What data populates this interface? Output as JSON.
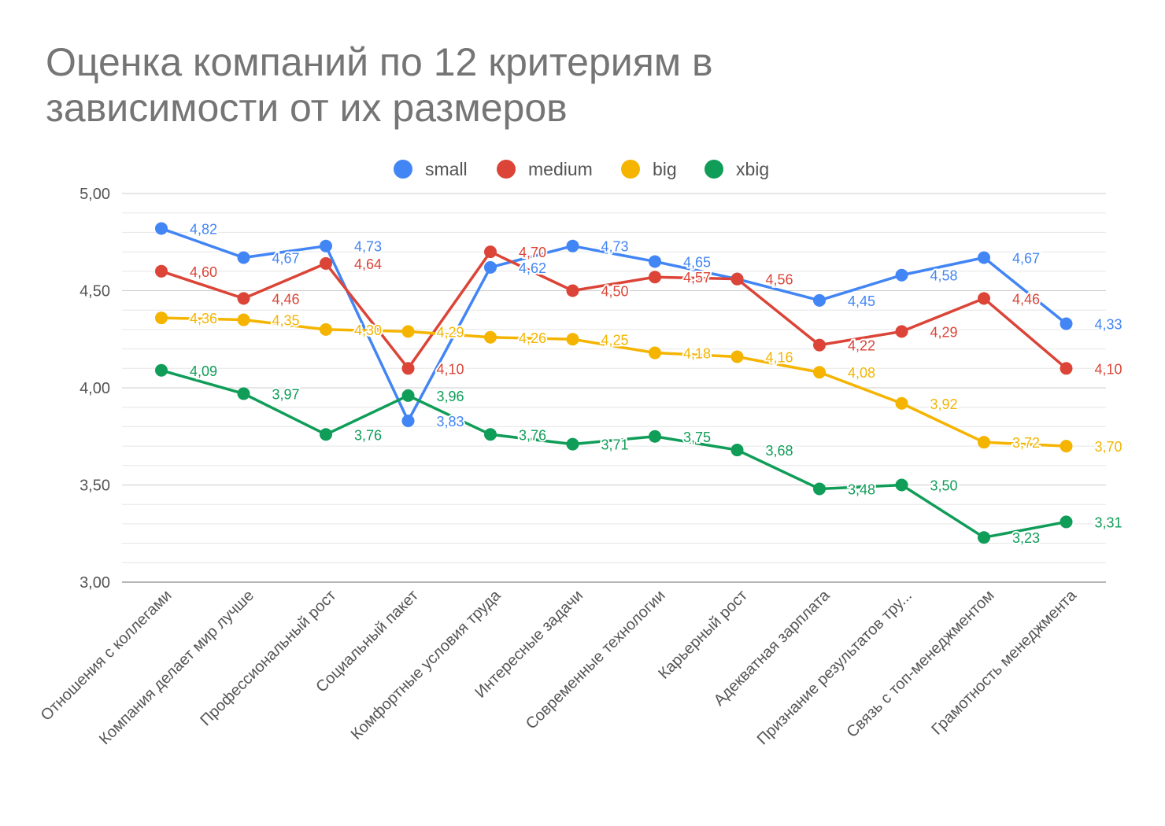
{
  "chart_data": {
    "type": "line",
    "title_lines": [
      "Оценка компаний по 12 критериям в",
      "зависимости от их размеров"
    ],
    "xlabel": "",
    "ylabel": "",
    "ylim": [
      3.0,
      5.0
    ],
    "yticks": [
      "3,00",
      "3,50",
      "4,00",
      "4,50",
      "5,00"
    ],
    "ytick_values": [
      3.0,
      3.5,
      4.0,
      4.5,
      5.0
    ],
    "grid": true,
    "legend_position": "top-center",
    "categories": [
      "Отношения с коллегами",
      "Компания делает мир лучше",
      "Профессиональный рост",
      "Социальный пакет",
      "Комфортные условия труда",
      "Интересные задачи",
      "Современные технологии",
      "Карьерный рост",
      "Адекватная зарплата",
      "Признание результатов тру...",
      "Связь с топ-менеджментом",
      "Грамотность менеджмента"
    ],
    "series": [
      {
        "name": "small",
        "color": "#4285f4",
        "values": [
          4.82,
          4.67,
          4.73,
          3.83,
          4.62,
          4.73,
          4.65,
          4.56,
          4.45,
          4.58,
          4.67,
          4.33
        ],
        "labels": [
          "4,82",
          "4,67",
          "4,73",
          "3,83",
          "4,62",
          "4,73",
          "4,65",
          "",
          "4,45",
          "4,58",
          "4,67",
          "4,33"
        ]
      },
      {
        "name": "medium",
        "color": "#db4437",
        "values": [
          4.6,
          4.46,
          4.64,
          4.1,
          4.7,
          4.5,
          4.57,
          4.56,
          4.22,
          4.29,
          4.46,
          4.1
        ],
        "labels": [
          "4,60",
          "4,46",
          "4,64",
          "4,10",
          "4,70",
          "4,50",
          "4,57",
          "4,56",
          "4,22",
          "4,29",
          "4,46",
          "4,10"
        ]
      },
      {
        "name": "big",
        "color": "#f4b400",
        "values": [
          4.36,
          4.35,
          4.3,
          4.29,
          4.26,
          4.25,
          4.18,
          4.16,
          4.08,
          3.92,
          3.72,
          3.7
        ],
        "labels": [
          "4,36",
          "4,35",
          "4,30",
          "4,29",
          "4,26",
          "4,25",
          "4,18",
          "4,16",
          "4,08",
          "3,92",
          "3,72",
          "3,70"
        ]
      },
      {
        "name": "xbig",
        "color": "#0f9d58",
        "values": [
          4.09,
          3.97,
          3.76,
          3.96,
          3.76,
          3.71,
          3.75,
          3.68,
          3.48,
          3.5,
          3.23,
          3.31
        ],
        "labels": [
          "4,09",
          "3,97",
          "3,76",
          "3,96",
          "3,76",
          "3,71",
          "3,75",
          "3,68",
          "3,48",
          "3,50",
          "3,23",
          "3,31"
        ]
      }
    ]
  }
}
